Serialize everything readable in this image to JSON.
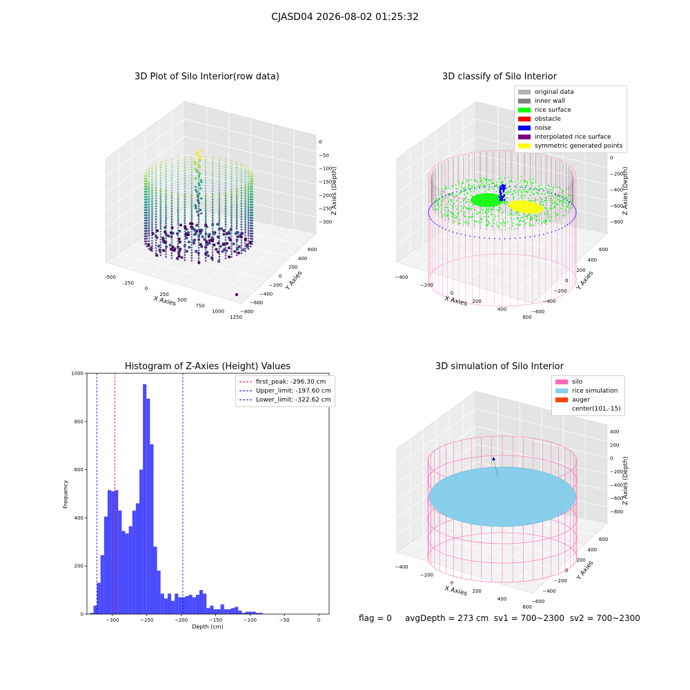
{
  "suptitle": "CJASD04 2026-08-02 01:25:32",
  "plots": {
    "raw": {
      "title": "3D Plot of Silo Interior(row data)",
      "xlabel": "X Axies",
      "ylabel": "Y Axies",
      "zlabel": "Z Axies (Depth)",
      "xticks": [
        "-500",
        "-250",
        "0",
        "250",
        "500",
        "750",
        "1000",
        "1250"
      ],
      "yticks": [
        "600",
        "400",
        "200",
        "0",
        "−200",
        "−400",
        "−600",
        "−800"
      ],
      "zticks": [
        "0",
        "−50",
        "−100",
        "−150",
        "−200",
        "−250",
        "−300"
      ]
    },
    "classify": {
      "title": "3D classify of Silo Interior",
      "xlabel": "X Axies",
      "ylabel": "Y Axies",
      "zlabel": "Z Axies (Depth)",
      "xticks": [
        "−400",
        "−200",
        "0",
        "200",
        "400",
        "600"
      ],
      "yticks": [
        "600",
        "400",
        "200",
        "0",
        "−200",
        "−400",
        "−600"
      ],
      "zticks": [
        "200",
        "0",
        "−200",
        "−400",
        "−600",
        "−800"
      ],
      "legend": [
        {
          "label": "original data",
          "color": "#b3b3b3"
        },
        {
          "label": "inner wall",
          "color": "#808080"
        },
        {
          "label": "rice surface",
          "color": "#00ff00"
        },
        {
          "label": "obstacle",
          "color": "#ff0000"
        },
        {
          "label": "noise",
          "color": "#0000ff"
        },
        {
          "label": "interpolated rice surface",
          "color": "#800080"
        },
        {
          "label": "symmetric generated points",
          "color": "#ffff00"
        }
      ]
    },
    "simulation": {
      "title": "3D simulation of Silo Interior",
      "xlabel": "X Axies",
      "ylabel": "Y Axies",
      "zlabel": "Z Axies (Depth)",
      "xticks": [
        "−400",
        "−200",
        "0",
        "200",
        "400",
        "600"
      ],
      "yticks": [
        "600",
        "400",
        "200",
        "0",
        "−200",
        "−400",
        "−600"
      ],
      "zticks": [
        "400",
        "200",
        "0",
        "−200",
        "−400",
        "−600",
        "−800"
      ],
      "legend": [
        {
          "label": "silo",
          "color": "#ff69b4"
        },
        {
          "label": "rice simulation",
          "color": "#87ceeb"
        },
        {
          "label": "auger",
          "color": "#ff4500"
        },
        {
          "label": "center(101,-15)",
          "color": ""
        }
      ]
    }
  },
  "status": {
    "flag": "flag = 0",
    "avg_depth": "avgDepth = 273 cm",
    "sv1": "sv1 = 700~2300",
    "sv2": "sv2 = 700~2300"
  },
  "chart_data": [
    {
      "type": "scatter",
      "title": "3D Plot of Silo Interior(row data)",
      "xlabel": "X Axies",
      "ylabel": "Y Axies",
      "zlabel": "Z Axies (Depth)",
      "xlim": [
        -600,
        1300
      ],
      "ylim": [
        -850,
        700
      ],
      "zlim": [
        -330,
        10
      ],
      "colormap": "viridis"
    },
    {
      "type": "scatter",
      "title": "3D classify of Silo Interior",
      "xlabel": "X Axies",
      "ylabel": "Y Axies",
      "zlabel": "Z Axies (Depth)",
      "xlim": [
        -500,
        700
      ],
      "ylim": [
        -650,
        700
      ],
      "zlim": [
        -900,
        300
      ],
      "legend_position": "top-right"
    },
    {
      "type": "bar",
      "title": "Histogram of Z-Axies (Height) Values",
      "xlabel": "Depth (cm)",
      "ylabel": "Frequency",
      "xlim": [
        -337,
        15
      ],
      "ylim": [
        0,
        1000
      ],
      "xticks": [
        -300,
        -250,
        -200,
        -150,
        -100,
        -50,
        0
      ],
      "yticks": [
        0,
        200,
        400,
        600,
        800,
        1000
      ],
      "bin_start": -332.6,
      "bin_width": 5.13,
      "values": [
        5,
        35,
        130,
        245,
        405,
        515,
        510,
        515,
        430,
        345,
        335,
        365,
        430,
        460,
        600,
        955,
        895,
        705,
        280,
        180,
        85,
        65,
        85,
        55,
        85,
        70,
        70,
        75,
        80,
        70,
        80,
        100,
        85,
        25,
        35,
        20,
        20,
        40,
        20,
        20,
        25,
        30,
        15,
        5,
        10,
        10,
        10,
        5,
        5
      ],
      "color": "#4a4aff",
      "lines": [
        {
          "label": "first_peak: -296.30 cm",
          "x": -296.3,
          "color": "#ff0000"
        },
        {
          "label": "Upper_limit: -197.60 cm",
          "x": -197.6,
          "color": "#0000ff"
        },
        {
          "label": "Lower_limit: -322.62 cm",
          "x": -322.62,
          "color": "#0000ff"
        }
      ],
      "legend_position": "top-right"
    },
    {
      "type": "scatter",
      "title": "3D simulation of Silo Interior",
      "xlabel": "X Axies",
      "ylabel": "Y Axies",
      "zlabel": "Z Axies (Depth)",
      "xlim": [
        -500,
        700
      ],
      "ylim": [
        -650,
        700
      ],
      "zlim": [
        -900,
        450
      ],
      "legend_position": "top-right"
    }
  ]
}
